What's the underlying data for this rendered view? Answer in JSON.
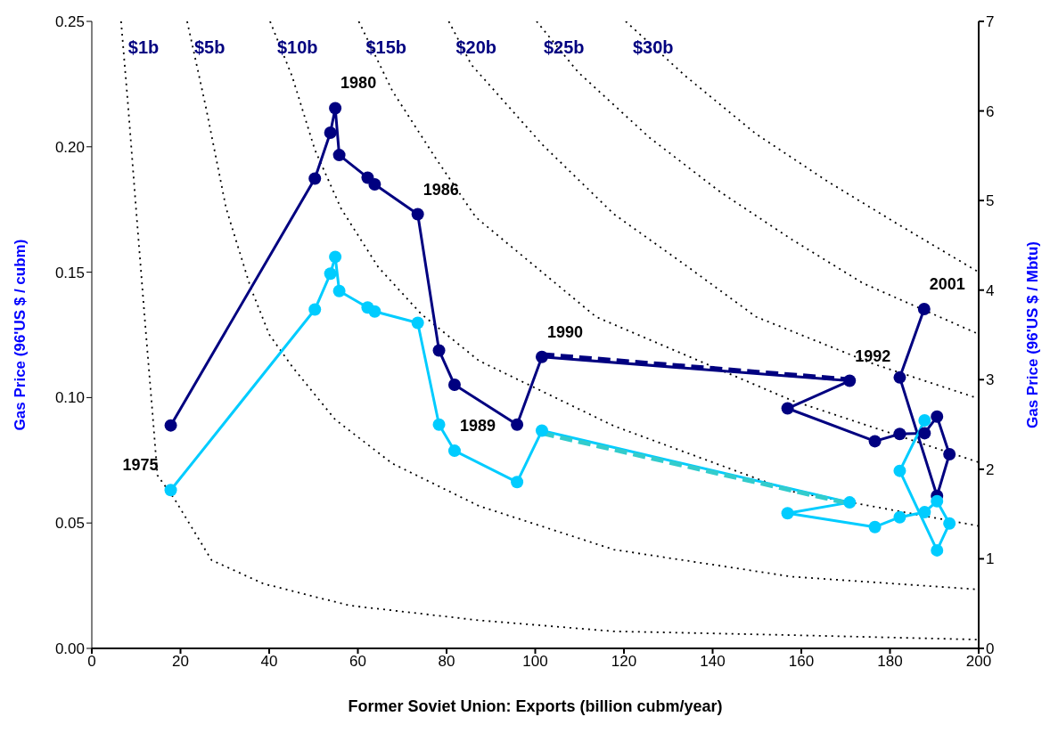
{
  "chart_data": {
    "type": "line",
    "xlabel": "Former Soviet Union: Exports (billion cubm/year)",
    "ylabel": "Gas Price (96'US $ / cubm)",
    "y2label": "Gas Price (96'US $ / Mbtu)",
    "xlim": [
      0,
      200
    ],
    "xticks": [
      0,
      20,
      40,
      60,
      80,
      100,
      120,
      140,
      160,
      180,
      200
    ],
    "ylim": [
      0,
      0.25
    ],
    "yticks": [
      {
        "value": 0,
        "label": "0.00"
      },
      0.05,
      {
        "value": 0.1,
        "label": "0.10"
      },
      0.15,
      {
        "value": 0.2,
        "label": "0.20"
      },
      0.25
    ],
    "y2lim": [
      0,
      7
    ],
    "y2ticks": [
      0,
      1,
      2,
      3,
      4,
      5,
      6,
      7
    ],
    "grid": false,
    "legend": false,
    "marker": "circle",
    "line_style": "solid",
    "series": [
      {
        "color": "#000080",
        "x": [
          17.8,
          50.3,
          53.8,
          54.9,
          55.8,
          62.2,
          63.8,
          73.5,
          78.3,
          81.8,
          95.9,
          101.5,
          170.9,
          156.9,
          176.6,
          182.2,
          187.8,
          190.6,
          193.4,
          190.6,
          182.2,
          187.7
        ],
        "values": [
          0.0889,
          0.1873,
          0.2056,
          0.2154,
          0.1967,
          0.1877,
          0.185,
          0.1731,
          0.1188,
          0.1051,
          0.0892,
          0.1162,
          0.1067,
          0.0957,
          0.0826,
          0.0855,
          0.0858,
          0.0924,
          0.0774,
          0.0608,
          0.108,
          0.1353
        ]
      },
      {
        "color": "#00ccff",
        "x": [
          17.8,
          50.3,
          53.8,
          54.9,
          55.8,
          62.2,
          63.8,
          73.5,
          78.3,
          81.8,
          95.9,
          101.5,
          170.9,
          156.9,
          176.6,
          182.2,
          187.8,
          190.6,
          193.4,
          190.6,
          182.2,
          187.8
        ],
        "values": [
          0.0631,
          0.1351,
          0.1494,
          0.1561,
          0.1425,
          0.1359,
          0.1343,
          0.1298,
          0.0892,
          0.0788,
          0.0663,
          0.0868,
          0.0582,
          0.0539,
          0.0484,
          0.0523,
          0.0543,
          0.0587,
          0.0498,
          0.0391,
          0.0708,
          0.0909
        ]
      },
      {
        "color": "#000080",
        "line_style": "dashed",
        "marker": "none",
        "x": [
          101.5,
          170.9
        ],
        "values": [
          0.1172,
          0.1072
        ]
      },
      {
        "color": "#33cccc",
        "line_style": "dashed",
        "marker": "none",
        "x": [
          101.5,
          170.9
        ],
        "values": [
          0.0858,
          0.0577
        ]
      },
      {
        "name": "$1b",
        "color": "#000000",
        "line_style": "dotted",
        "marker": "none",
        "x": [
          6.6,
          8.2,
          9.9,
          12.1,
          13.7,
          14.8,
          18.6,
          27.0,
          38.7,
          58.1,
          87.3,
          117.7,
          157.8,
          200
        ],
        "values": [
          0.25,
          0.216,
          0.177,
          0.128,
          0.0936,
          0.069,
          0.0597,
          0.0352,
          0.0258,
          0.0171,
          0.0112,
          0.0068,
          0.0053,
          0.0035
        ]
      },
      {
        "name": "$5b",
        "color": "#000000",
        "line_style": "dotted",
        "marker": "none",
        "x": [
          21.5,
          25.7,
          30.3,
          35.8,
          40.0,
          45.2,
          54.9,
          67.8,
          87.3,
          117.7,
          157.8,
          200
        ],
        "values": [
          0.25,
          0.216,
          0.1754,
          0.1439,
          0.1252,
          0.1123,
          0.0912,
          0.0737,
          0.0568,
          0.0394,
          0.0286,
          0.0235
        ]
      },
      {
        "name": "$10b",
        "color": "#000000",
        "line_style": "dotted",
        "marker": "none",
        "x": [
          40.2,
          45.2,
          50.3,
          56.2,
          64.6,
          74.3,
          87.3,
          117.7,
          157.8,
          200
        ],
        "values": [
          0.25,
          0.228,
          0.1988,
          0.1754,
          0.152,
          0.1333,
          0.1147,
          0.0887,
          0.0626,
          0.0488
        ]
      },
      {
        "name": "$15b",
        "color": "#000000",
        "line_style": "dotted",
        "marker": "none",
        "x": [
          60.2,
          67.8,
          77.6,
          86.6,
          113.7,
          157.8,
          200
        ],
        "values": [
          0.25,
          0.2222,
          0.1953,
          0.1719,
          0.1322,
          0.0989,
          0.0742
        ]
      },
      {
        "name": "$20b",
        "color": "#000000",
        "line_style": "dotted",
        "marker": "none",
        "x": [
          80.5,
          85.6,
          101.7,
          117.7,
          133.8,
          149.8,
          176.3,
          200
        ],
        "values": [
          0.25,
          0.2327,
          0.2007,
          0.1732,
          0.1529,
          0.1322,
          0.1134,
          0.0996
        ]
      },
      {
        "name": "$25b",
        "color": "#000000",
        "line_style": "dotted",
        "marker": "none",
        "x": [
          100.3,
          109.7,
          125.8,
          141.8,
          157.9,
          173.9,
          200
        ],
        "values": [
          0.25,
          0.2297,
          0.2036,
          0.1819,
          0.163,
          0.1456,
          0.1253
        ]
      },
      {
        "name": "$30b",
        "color": "#000000",
        "line_style": "dotted",
        "marker": "none",
        "x": [
          120.4,
          133.8,
          149.8,
          165.9,
          182.0,
          200
        ],
        "values": [
          0.25,
          0.2283,
          0.2051,
          0.1862,
          0.1689,
          0.15
        ]
      }
    ],
    "annotations": [
      {
        "text": "1975",
        "x": 17.8,
        "y": 0.0631
      },
      {
        "text": "1980",
        "x": 54.9,
        "y": 0.2154
      },
      {
        "text": "1986",
        "x": 73.5,
        "y": 0.1731
      },
      {
        "text": "1989",
        "x": 81.8,
        "y": 0.0788
      },
      {
        "text": "1990",
        "x": 101.5,
        "y": 0.1162
      },
      {
        "text": "1992",
        "x": 170.9,
        "y": 0.1067
      },
      {
        "text": "2001",
        "x": 187.7,
        "y": 0.1353
      }
    ]
  }
}
